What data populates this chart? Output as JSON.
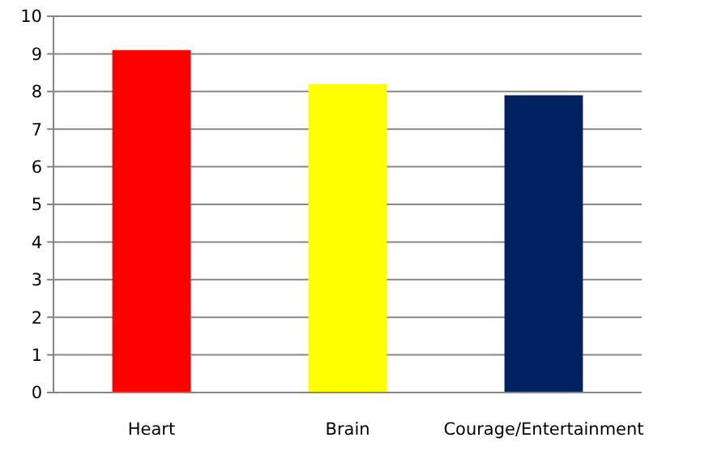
{
  "chart_data": {
    "type": "bar",
    "categories": [
      "Heart",
      "Brain",
      "Courage/Entertainment"
    ],
    "values": [
      9.1,
      8.2,
      7.9
    ],
    "colors": [
      "#ff0000",
      "#ffff00",
      "#002060"
    ],
    "ylim": [
      0,
      10
    ],
    "yticks": [
      0,
      1,
      2,
      3,
      4,
      5,
      6,
      7,
      8,
      9,
      10
    ],
    "grid": "y"
  }
}
